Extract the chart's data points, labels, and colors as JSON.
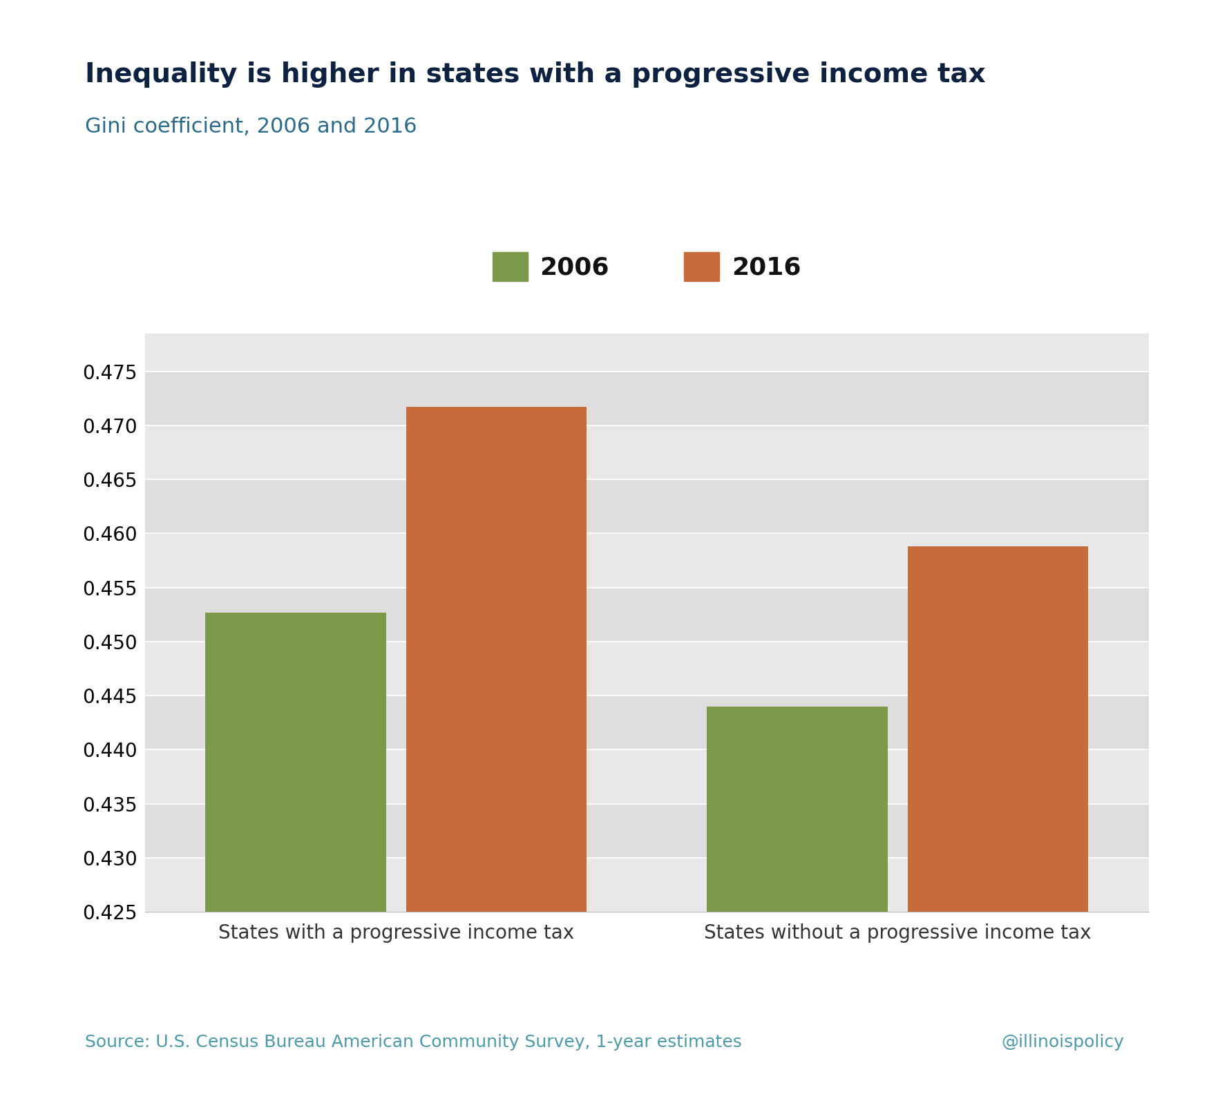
{
  "title": "Inequality is higher in states with a progressive income tax",
  "subtitle": "Gini coefficient, 2006 and 2016",
  "title_color": "#0d2240",
  "subtitle_color": "#2a6a8a",
  "categories": [
    "States with a progressive income tax",
    "States without a progressive income tax"
  ],
  "years": [
    "2006",
    "2016"
  ],
  "values_2006": [
    0.4527,
    0.444
  ],
  "values_2016": [
    0.4717,
    0.4588
  ],
  "color_2006": "#7a9a4a",
  "color_2016": "#c86b3a",
  "ylim_min": 0.425,
  "ylim_max": 0.4785,
  "yticks": [
    0.425,
    0.43,
    0.435,
    0.44,
    0.445,
    0.45,
    0.455,
    0.46,
    0.465,
    0.47,
    0.475
  ],
  "bar_width": 0.18,
  "background_color": "#ffffff",
  "plot_bg_color": "#e8e8e8",
  "band_color_dark": "#e0e0e0",
  "band_color_light": "#ebebeb",
  "source_text": "Source: U.S. Census Bureau American Community Survey, 1-year estimates",
  "watermark": "@illinoispolicy",
  "source_color": "#4a9aaa",
  "watermark_color": "#4a9aaa",
  "title_fontsize": 28,
  "subtitle_fontsize": 22,
  "tick_fontsize": 20,
  "legend_fontsize": 26,
  "source_fontsize": 18
}
